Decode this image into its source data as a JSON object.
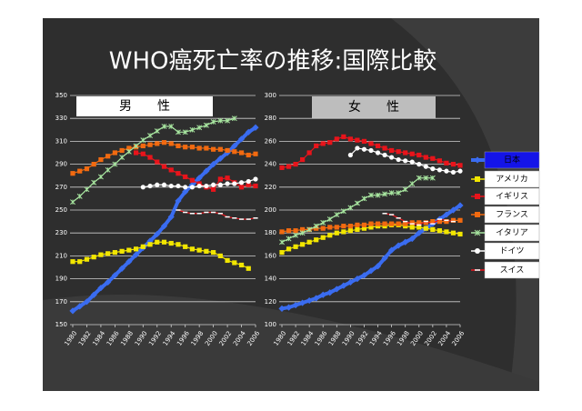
{
  "title": "WHO癌死亡率の推移:国際比較",
  "chart_data": [
    {
      "type": "line",
      "title": "男　　性",
      "x": [
        1980,
        1981,
        1982,
        1983,
        1984,
        1985,
        1986,
        1987,
        1988,
        1989,
        1990,
        1991,
        1992,
        1993,
        1994,
        1995,
        1996,
        1997,
        1998,
        1999,
        2000,
        2001,
        2002,
        2003,
        2004,
        2005,
        2006
      ],
      "xlim": [
        1980,
        2006
      ],
      "xticks": [
        1980,
        1982,
        1984,
        1986,
        1988,
        1990,
        1992,
        1994,
        1996,
        1998,
        2000,
        2002,
        2004,
        2006
      ],
      "ylim": [
        150,
        350
      ],
      "yticks": [
        150,
        170,
        190,
        210,
        230,
        250,
        270,
        290,
        310,
        330,
        350
      ],
      "grid": true,
      "legend": "right",
      "series": [
        {
          "name": "日本",
          "color": "#3a6cf0",
          "marker": "diamond",
          "values": [
            162,
            166,
            170,
            176,
            182,
            187,
            193,
            199,
            205,
            211,
            217,
            223,
            229,
            236,
            244,
            258,
            266,
            272,
            278,
            284,
            290,
            295,
            300,
            306,
            312,
            318,
            322
          ]
        },
        {
          "name": "アメリカ",
          "color": "#f2e600",
          "marker": "square",
          "values": [
            205,
            205,
            207,
            209,
            211,
            212,
            213,
            214,
            215,
            216,
            218,
            220,
            222,
            222,
            221,
            220,
            218,
            216,
            215,
            214,
            213,
            210,
            206,
            204,
            202,
            199,
            null
          ]
        },
        {
          "name": "イギリス",
          "color": "#e8141b",
          "marker": "square",
          "values": [
            null,
            null,
            null,
            null,
            null,
            null,
            null,
            null,
            null,
            300,
            299,
            296,
            292,
            288,
            285,
            282,
            279,
            276,
            273,
            270,
            268,
            277,
            278,
            274,
            270,
            272,
            271
          ]
        },
        {
          "name": "フランス",
          "color": "#f26a10",
          "marker": "square",
          "values": [
            282,
            284,
            286,
            290,
            294,
            297,
            300,
            302,
            304,
            305,
            306,
            307,
            308,
            309,
            308,
            306,
            305,
            305,
            304,
            304,
            303,
            303,
            302,
            301,
            300,
            298,
            299
          ]
        },
        {
          "name": "イタリア",
          "color": "#a8e6a0",
          "marker": "x",
          "values": [
            257,
            262,
            268,
            274,
            279,
            285,
            290,
            296,
            301,
            306,
            311,
            315,
            319,
            323,
            323,
            318,
            318,
            320,
            322,
            324,
            327,
            328,
            328,
            330,
            null,
            null,
            null
          ]
        },
        {
          "name": "ドイツ",
          "color": "#ffffff",
          "marker": "circle",
          "values": [
            null,
            null,
            null,
            null,
            null,
            null,
            null,
            null,
            null,
            null,
            270,
            271,
            272,
            272,
            271,
            271,
            270,
            270,
            271,
            271,
            272,
            272,
            273,
            273,
            274,
            275,
            277
          ]
        },
        {
          "name": "スイス",
          "color": "#e8141b",
          "marker": "dash",
          "values": [
            null,
            null,
            null,
            null,
            null,
            null,
            null,
            null,
            null,
            null,
            null,
            null,
            null,
            null,
            null,
            250,
            248,
            247,
            247,
            248,
            248,
            247,
            244,
            243,
            242,
            242,
            243
          ]
        }
      ]
    },
    {
      "type": "line",
      "title": "女　　性",
      "x": [
        1980,
        1981,
        1982,
        1983,
        1984,
        1985,
        1986,
        1987,
        1988,
        1989,
        1990,
        1991,
        1992,
        1993,
        1994,
        1995,
        1996,
        1997,
        1998,
        1999,
        2000,
        2001,
        2002,
        2003,
        2004,
        2005,
        2006
      ],
      "xlim": [
        1980,
        2006
      ],
      "xticks": [
        1980,
        1982,
        1984,
        1986,
        1988,
        1990,
        1992,
        1994,
        1996,
        1998,
        2000,
        2002,
        2004,
        2006
      ],
      "ylim": [
        100,
        300
      ],
      "yticks": [
        100,
        120,
        140,
        160,
        180,
        200,
        220,
        240,
        260,
        280,
        300
      ],
      "grid": true,
      "series": [
        {
          "color": "#3a6cf0",
          "marker": "diamond",
          "values": [
            114,
            115,
            117,
            119,
            121,
            123,
            126,
            128,
            131,
            134,
            137,
            140,
            143,
            147,
            151,
            158,
            165,
            169,
            172,
            175,
            180,
            184,
            188,
            192,
            196,
            200,
            204
          ]
        },
        {
          "color": "#f2e600",
          "marker": "square",
          "values": [
            163,
            166,
            168,
            170,
            172,
            174,
            176,
            178,
            180,
            181,
            182,
            183,
            184,
            185,
            186,
            186,
            187,
            187,
            186,
            185,
            185,
            184,
            183,
            182,
            181,
            180,
            179
          ]
        },
        {
          "color": "#e8141b",
          "marker": "square",
          "values": [
            237,
            238,
            240,
            244,
            250,
            256,
            258,
            259,
            262,
            264,
            262,
            261,
            260,
            258,
            256,
            254,
            252,
            251,
            250,
            249,
            248,
            246,
            245,
            243,
            241,
            240,
            239
          ]
        },
        {
          "color": "#f26a10",
          "marker": "square",
          "values": [
            181,
            182,
            182,
            183,
            183,
            184,
            184,
            185,
            185,
            186,
            186,
            187,
            187,
            188,
            188,
            188,
            188,
            188,
            188,
            189,
            189,
            189,
            190,
            190,
            190,
            191,
            191
          ]
        },
        {
          "color": "#a8e6a0",
          "marker": "x",
          "values": [
            172,
            175,
            178,
            180,
            183,
            186,
            189,
            192,
            196,
            199,
            202,
            206,
            210,
            213,
            213,
            214,
            215,
            215,
            218,
            223,
            228,
            228,
            228,
            null,
            null,
            null,
            null
          ]
        },
        {
          "color": "#ffffff",
          "marker": "circle",
          "values": [
            null,
            null,
            null,
            null,
            null,
            null,
            null,
            null,
            null,
            null,
            248,
            254,
            253,
            252,
            250,
            248,
            246,
            244,
            243,
            242,
            240,
            238,
            236,
            235,
            234,
            233,
            234
          ]
        },
        {
          "color": "#e8141b",
          "marker": "dash",
          "values": [
            null,
            null,
            null,
            null,
            null,
            null,
            null,
            null,
            null,
            null,
            null,
            null,
            null,
            null,
            null,
            197,
            196,
            193,
            190,
            188,
            187,
            190,
            188,
            192,
            191,
            190,
            null
          ]
        }
      ]
    }
  ]
}
